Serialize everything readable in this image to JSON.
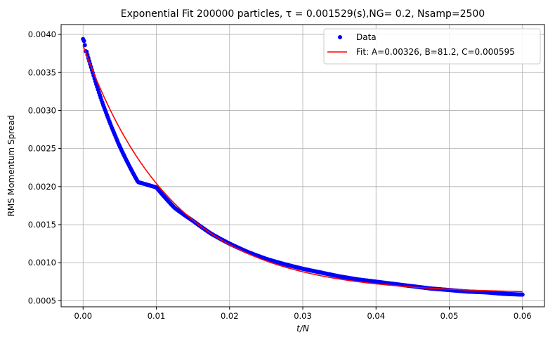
{
  "chart_data": {
    "type": "scatter",
    "title": "Exponential Fit 200000 particles, τ = 0.001529(s),NG= 0.2, Nsamp=2500",
    "xlabel": "t/N",
    "ylabel": "RMS Momentum Spread",
    "xlim": [
      -0.003,
      0.063
    ],
    "ylim": [
      0.00042,
      0.00413
    ],
    "xticks": [
      0.0,
      0.01,
      0.02,
      0.03,
      0.04,
      0.05,
      0.06
    ],
    "xtick_labels": [
      "0.00",
      "0.01",
      "0.02",
      "0.03",
      "0.04",
      "0.05",
      "0.06"
    ],
    "yticks": [
      0.0005,
      0.001,
      0.0015,
      0.002,
      0.0025,
      0.003,
      0.0035,
      0.004
    ],
    "ytick_labels": [
      "0.0005",
      "0.0010",
      "0.0015",
      "0.0020",
      "0.0025",
      "0.0030",
      "0.0035",
      "0.0040"
    ],
    "grid": true,
    "legend_position": "top-right",
    "series": [
      {
        "name": "Data",
        "kind": "scatter",
        "color": "#0000ff",
        "x": [
          0.0,
          0.0025,
          0.005,
          0.0075,
          0.01,
          0.0125,
          0.015,
          0.0175,
          0.02,
          0.0225,
          0.025,
          0.0275,
          0.03,
          0.0325,
          0.035,
          0.0375,
          0.04,
          0.0425,
          0.045,
          0.0475,
          0.05,
          0.0525,
          0.055,
          0.0575,
          0.06
        ],
        "y": [
          0.00394,
          0.00314,
          0.00253,
          0.00206,
          0.00199,
          0.00172,
          0.00155,
          0.00138,
          0.00125,
          0.00114,
          0.00105,
          0.00098,
          0.00092,
          0.00087,
          0.00082,
          0.00078,
          0.00075,
          0.00072,
          0.00069,
          0.00066,
          0.00064,
          0.00062,
          0.00061,
          0.00059,
          0.00058
        ]
      },
      {
        "name": "Fit: A=0.00326, B=81.2, C=0.000595",
        "kind": "line",
        "color": "#ff0000",
        "function": "A*exp(-B*x)+C",
        "params": {
          "A": 0.00326,
          "B": 81.2,
          "C": 0.000595
        },
        "x_range": [
          0.0,
          0.06
        ]
      }
    ]
  }
}
